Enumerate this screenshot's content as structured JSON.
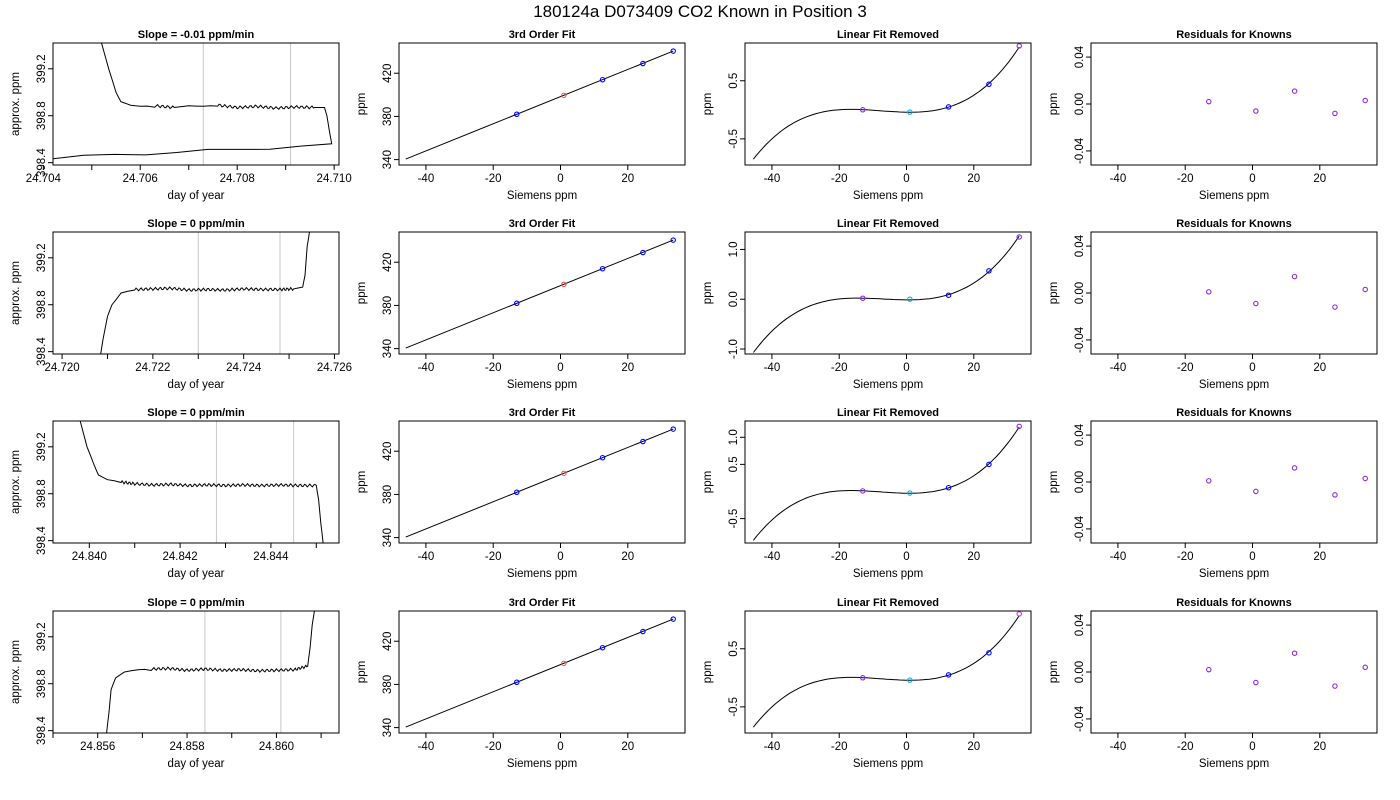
{
  "suptitle": "180124a     D073409   CO2 Known in Position  3",
  "colors": {
    "line": "#000000",
    "vline": "#c8c8c8",
    "pt_blue": "#0000ff",
    "pt_red": "#ff5555",
    "pt_cyan": "#00b5e5",
    "pt_purple": "#8a2be2",
    "pt_magenta": "#cc33cc"
  },
  "chart_data": [
    {
      "type": "line",
      "title": "Slope =  -0.01  ppm/min",
      "xlabel": "day of year",
      "ylabel": "approx. ppm",
      "xlim": [
        24.7042,
        24.7101
      ],
      "ylim": [
        398.38,
        399.42
      ],
      "xticks": [
        24.704,
        24.706,
        24.708,
        24.71
      ],
      "xtick_labels": [
        "24.704",
        "24.706",
        "24.708",
        "24.710"
      ],
      "xticks_minor": [
        24.705,
        24.707,
        24.709
      ],
      "yticks": [
        398.4,
        398.8,
        399.2
      ],
      "ytick_labels": [
        "398.4",
        "398.8",
        "399.2"
      ],
      "vlines": [
        24.7073,
        24.7091
      ],
      "x": [
        24.7052,
        24.70535,
        24.7055,
        24.7056,
        24.7058,
        24.706,
        24.7063,
        24.7067,
        24.707,
        24.7073,
        24.7076,
        24.708,
        24.7084,
        24.7088,
        24.7092,
        24.7096,
        24.7098,
        24.70985,
        24.70995,
        24.701
      ],
      "y": [
        399.42,
        399.2,
        399.0,
        398.92,
        398.89,
        398.88,
        398.885,
        398.87,
        398.885,
        398.88,
        398.89,
        398.87,
        398.88,
        398.865,
        398.875,
        398.87,
        398.87,
        398.8,
        398.55,
        398.38
      ],
      "band_wiggle": 0.012
    },
    {
      "type": "scatter",
      "title": "3rd Order Fit",
      "xlabel": "Siemens ppm",
      "ylabel": "ppm",
      "xlim": [
        -48,
        37
      ],
      "ylim": [
        335,
        448
      ],
      "xticks": [
        -40,
        -20,
        0,
        20
      ],
      "xtick_labels": [
        "-40",
        "-20",
        "0",
        "20"
      ],
      "yticks": [
        340,
        380,
        420
      ],
      "ytick_labels": [
        "340",
        "380",
        "420"
      ],
      "curve": {
        "kind": "linear",
        "x0": -46,
        "x1": 33.5,
        "y0": 340.5,
        "y1": 440.5
      },
      "points": [
        {
          "x": -13,
          "y": 382,
          "color": "pt_blue"
        },
        {
          "x": 1,
          "y": 399.5,
          "color": "pt_red"
        },
        {
          "x": 12.5,
          "y": 414,
          "color": "pt_blue"
        },
        {
          "x": 24.5,
          "y": 429,
          "color": "pt_blue"
        },
        {
          "x": 33.5,
          "y": 440.5,
          "color": "pt_blue"
        }
      ]
    },
    {
      "type": "scatter",
      "title": "Linear Fit Removed",
      "xlabel": "Siemens ppm",
      "ylabel": "ppm",
      "xlim": [
        -48,
        37
      ],
      "ylim": [
        -0.95,
        1.15
      ],
      "xticks": [
        -40,
        -20,
        0,
        20
      ],
      "xtick_labels": [
        "-40",
        "-20",
        "0",
        "20"
      ],
      "yticks": [
        -0.5,
        0.5
      ],
      "ytick_labels": [
        "-0.5",
        "0.5"
      ],
      "curve": {
        "kind": "cubic",
        "x0": -45.5,
        "x1": 33.5,
        "y_at_x0": -0.85,
        "y_peak": 0.0,
        "x_peak": -12,
        "y_trough": -0.04,
        "x_trough": 3,
        "y_at_x1": 1.08
      },
      "points": [
        {
          "x": -13,
          "y": 0.0,
          "color": "pt_purple"
        },
        {
          "x": 1,
          "y": -0.04,
          "color": "pt_cyan"
        },
        {
          "x": 12.5,
          "y": 0.05,
          "color": "pt_blue"
        },
        {
          "x": 24.5,
          "y": 0.44,
          "color": "pt_blue"
        },
        {
          "x": 33.5,
          "y": 1.1,
          "color": "pt_purple"
        }
      ]
    },
    {
      "type": "scatter",
      "title": "Residuals for Knowns",
      "xlabel": "Siemens ppm",
      "ylabel": "ppm",
      "xlim": [
        -48,
        37
      ],
      "ylim": [
        -0.052,
        0.052
      ],
      "xticks": [
        -40,
        -20,
        0,
        20
      ],
      "xtick_labels": [
        "-40",
        "-20",
        "0",
        "20"
      ],
      "yticks": [
        -0.04,
        0.0,
        0.04
      ],
      "ytick_labels": [
        "-0.04",
        "0.00",
        "0.04"
      ],
      "points": [
        {
          "x": -13,
          "y": 0.002,
          "color": "pt_purple"
        },
        {
          "x": 1,
          "y": -0.006,
          "color": "pt_purple"
        },
        {
          "x": 12.5,
          "y": 0.011,
          "color": "pt_purple"
        },
        {
          "x": 24.5,
          "y": -0.008,
          "color": "pt_purple"
        },
        {
          "x": 33.5,
          "y": 0.003,
          "color": "pt_purple"
        }
      ]
    },
    {
      "type": "line",
      "title": "Slope =  0  ppm/min",
      "xlabel": "day of year",
      "ylabel": "approx. ppm",
      "xlim": [
        24.7198,
        24.7261
      ],
      "ylim": [
        398.38,
        399.42
      ],
      "xticks": [
        24.72,
        24.722,
        24.724,
        24.726
      ],
      "xtick_labels": [
        "24.720",
        "24.722",
        "24.724",
        "24.726"
      ],
      "xticks_minor": [
        24.721,
        24.723,
        24.725
      ],
      "yticks": [
        398.4,
        398.8,
        399.2
      ],
      "ytick_labels": [
        "398.4",
        "398.8",
        "399.2"
      ],
      "vlines": [
        24.723,
        24.7248
      ],
      "x": [
        24.72085,
        24.7209,
        24.721,
        24.7211,
        24.7213,
        24.7216,
        24.722,
        24.7224,
        24.7228,
        24.7232,
        24.7236,
        24.724,
        24.7244,
        24.7248,
        24.7251,
        24.7253,
        24.72535,
        24.7254,
        24.72545
      ],
      "y": [
        398.38,
        398.5,
        398.7,
        398.8,
        398.9,
        398.93,
        398.935,
        398.94,
        398.925,
        398.93,
        398.925,
        398.935,
        398.93,
        398.93,
        398.935,
        398.95,
        399.05,
        399.3,
        399.42
      ],
      "band_wiggle": 0.012
    },
    {
      "type": "scatter",
      "title": "3rd Order Fit",
      "xlabel": "Siemens ppm",
      "ylabel": "ppm",
      "xlim": [
        -48,
        37
      ],
      "ylim": [
        335,
        448
      ],
      "xticks": [
        -40,
        -20,
        0,
        20
      ],
      "xtick_labels": [
        "-40",
        "-20",
        "0",
        "20"
      ],
      "yticks": [
        340,
        380,
        420
      ],
      "ytick_labels": [
        "340",
        "380",
        "420"
      ],
      "curve": {
        "kind": "linear",
        "x0": -46,
        "x1": 33.5,
        "y0": 340.5,
        "y1": 440.5
      },
      "points": [
        {
          "x": -13,
          "y": 382,
          "color": "pt_blue"
        },
        {
          "x": 1,
          "y": 399.5,
          "color": "pt_red"
        },
        {
          "x": 12.5,
          "y": 414,
          "color": "pt_blue"
        },
        {
          "x": 24.5,
          "y": 429,
          "color": "pt_blue"
        },
        {
          "x": 33.5,
          "y": 440.5,
          "color": "pt_blue"
        }
      ]
    },
    {
      "type": "scatter",
      "title": "Linear Fit Removed",
      "xlabel": "Siemens ppm",
      "ylabel": "ppm",
      "xlim": [
        -48,
        37
      ],
      "ylim": [
        -1.1,
        1.35
      ],
      "xticks": [
        -40,
        -20,
        0,
        20
      ],
      "xtick_labels": [
        "-40",
        "-20",
        "0",
        "20"
      ],
      "yticks": [
        -1.0,
        0.0,
        1.0
      ],
      "ytick_labels": [
        "-1.0",
        "0.0",
        "1.0"
      ],
      "curve": {
        "kind": "cubic",
        "x0": -45.5,
        "x1": 33.5,
        "y_at_x0": -1.07,
        "y_peak": 0.02,
        "x_peak": -12,
        "y_trough": -0.01,
        "x_trough": 3,
        "y_at_x1": 1.27
      },
      "points": [
        {
          "x": -13,
          "y": 0.02,
          "color": "pt_purple"
        },
        {
          "x": 1,
          "y": 0.0,
          "color": "pt_cyan"
        },
        {
          "x": 12.5,
          "y": 0.08,
          "color": "pt_blue"
        },
        {
          "x": 24.5,
          "y": 0.57,
          "color": "pt_blue"
        },
        {
          "x": 33.5,
          "y": 1.25,
          "color": "pt_purple"
        }
      ]
    },
    {
      "type": "scatter",
      "title": "Residuals for Knowns",
      "xlabel": "Siemens ppm",
      "ylabel": "ppm",
      "xlim": [
        -48,
        37
      ],
      "ylim": [
        -0.052,
        0.052
      ],
      "xticks": [
        -40,
        -20,
        0,
        20
      ],
      "xtick_labels": [
        "-40",
        "-20",
        "0",
        "20"
      ],
      "yticks": [
        -0.04,
        0.0,
        0.04
      ],
      "ytick_labels": [
        "-0.04",
        "0.00",
        "0.04"
      ],
      "points": [
        {
          "x": -13,
          "y": 0.001,
          "color": "pt_purple"
        },
        {
          "x": 1,
          "y": -0.009,
          "color": "pt_purple"
        },
        {
          "x": 12.5,
          "y": 0.014,
          "color": "pt_purple"
        },
        {
          "x": 24.5,
          "y": -0.012,
          "color": "pt_purple"
        },
        {
          "x": 33.5,
          "y": 0.003,
          "color": "pt_purple"
        }
      ]
    },
    {
      "type": "line",
      "title": "Slope =  0  ppm/min",
      "xlabel": "day of year",
      "ylabel": "approx. ppm",
      "xlim": [
        24.8392,
        24.8455
      ],
      "ylim": [
        398.38,
        399.42
      ],
      "xticks": [
        24.84,
        24.842,
        24.844
      ],
      "xtick_labels": [
        "24.840",
        "24.842",
        "24.844"
      ],
      "xticks_minor": [
        24.841,
        24.843,
        24.845
      ],
      "yticks": [
        398.4,
        398.8,
        399.2
      ],
      "ytick_labels": [
        "398.4",
        "398.8",
        "399.2"
      ],
      "vlines": [
        24.8428,
        24.8445
      ],
      "x": [
        24.8398,
        24.83995,
        24.8401,
        24.8402,
        24.8404,
        24.8407,
        24.841,
        24.8414,
        24.8418,
        24.8422,
        24.8426,
        24.843,
        24.8434,
        24.8438,
        24.8442,
        24.8446,
        24.845,
        24.84505,
        24.8451,
        24.84515
      ],
      "y": [
        399.42,
        399.2,
        399.05,
        398.96,
        398.92,
        398.9,
        398.885,
        398.875,
        398.88,
        398.87,
        398.875,
        398.87,
        398.875,
        398.87,
        398.875,
        398.87,
        398.87,
        398.75,
        398.55,
        398.38
      ],
      "band_wiggle": 0.012
    },
    {
      "type": "scatter",
      "title": "3rd Order Fit",
      "xlabel": "Siemens ppm",
      "ylabel": "ppm",
      "xlim": [
        -48,
        37
      ],
      "ylim": [
        335,
        448
      ],
      "xticks": [
        -40,
        -20,
        0,
        20
      ],
      "xtick_labels": [
        "-40",
        "-20",
        "0",
        "20"
      ],
      "yticks": [
        340,
        380,
        420
      ],
      "ytick_labels": [
        "340",
        "380",
        "420"
      ],
      "curve": {
        "kind": "linear",
        "x0": -46,
        "x1": 33.5,
        "y0": 340.5,
        "y1": 440.5
      },
      "points": [
        {
          "x": -13,
          "y": 382,
          "color": "pt_blue"
        },
        {
          "x": 1,
          "y": 399.5,
          "color": "pt_red"
        },
        {
          "x": 12.5,
          "y": 414,
          "color": "pt_blue"
        },
        {
          "x": 24.5,
          "y": 429,
          "color": "pt_blue"
        },
        {
          "x": 33.5,
          "y": 440.5,
          "color": "pt_blue"
        }
      ]
    },
    {
      "type": "scatter",
      "title": "Linear Fit Removed",
      "xlabel": "Siemens ppm",
      "ylabel": "ppm",
      "xlim": [
        -48,
        37
      ],
      "ylim": [
        -0.95,
        1.3
      ],
      "xticks": [
        -40,
        -20,
        0,
        20
      ],
      "xtick_labels": [
        "-40",
        "-20",
        "0",
        "20"
      ],
      "yticks": [
        -0.5,
        0.5,
        1.0
      ],
      "ytick_labels": [
        "-0.5",
        "0.5",
        "1.0"
      ],
      "curve": {
        "kind": "cubic",
        "x0": -45.5,
        "x1": 33.5,
        "y_at_x0": -0.9,
        "y_peak": 0.01,
        "x_peak": -12,
        "y_trough": -0.03,
        "x_trough": 3,
        "y_at_x1": 1.19
      },
      "points": [
        {
          "x": -13,
          "y": 0.01,
          "color": "pt_purple"
        },
        {
          "x": 1,
          "y": -0.03,
          "color": "pt_cyan"
        },
        {
          "x": 12.5,
          "y": 0.07,
          "color": "pt_blue"
        },
        {
          "x": 24.5,
          "y": 0.5,
          "color": "pt_blue"
        },
        {
          "x": 33.5,
          "y": 1.2,
          "color": "pt_purple"
        }
      ]
    },
    {
      "type": "scatter",
      "title": "Residuals for Knowns",
      "xlabel": "Siemens ppm",
      "ylabel": "ppm",
      "xlim": [
        -48,
        37
      ],
      "ylim": [
        -0.052,
        0.052
      ],
      "xticks": [
        -40,
        -20,
        0,
        20
      ],
      "xtick_labels": [
        "-40",
        "-20",
        "0",
        "20"
      ],
      "yticks": [
        -0.04,
        0.0,
        0.04
      ],
      "ytick_labels": [
        "-0.04",
        "0.00",
        "0.04"
      ],
      "points": [
        {
          "x": -13,
          "y": 0.001,
          "color": "pt_purple"
        },
        {
          "x": 1,
          "y": -0.008,
          "color": "pt_purple"
        },
        {
          "x": 12.5,
          "y": 0.012,
          "color": "pt_purple"
        },
        {
          "x": 24.5,
          "y": -0.011,
          "color": "pt_purple"
        },
        {
          "x": 33.5,
          "y": 0.003,
          "color": "pt_purple"
        }
      ]
    },
    {
      "type": "line",
      "title": "Slope =  0  ppm/min",
      "xlabel": "day of year",
      "ylabel": "approx. ppm",
      "xlim": [
        24.855,
        24.8614
      ],
      "ylim": [
        398.38,
        399.42
      ],
      "xticks": [
        24.856,
        24.858,
        24.86
      ],
      "xtick_labels": [
        "24.856",
        "24.858",
        "24.860"
      ],
      "xticks_minor": [
        24.855,
        24.857,
        24.859,
        24.861
      ],
      "yticks": [
        398.4,
        398.8,
        399.2
      ],
      "ytick_labels": [
        "398.4",
        "398.8",
        "399.2"
      ],
      "vlines": [
        24.8584,
        24.8601
      ],
      "x": [
        24.8562,
        24.85625,
        24.8563,
        24.8564,
        24.8566,
        24.8569,
        24.8572,
        24.8576,
        24.858,
        24.8584,
        24.8588,
        24.8592,
        24.8596,
        24.86,
        24.8604,
        24.8607,
        24.86075,
        24.8608,
        24.86085
      ],
      "y": [
        398.38,
        398.55,
        398.75,
        398.85,
        398.9,
        398.92,
        398.925,
        398.93,
        398.915,
        398.925,
        398.915,
        398.92,
        398.91,
        398.915,
        398.92,
        398.95,
        399.1,
        399.3,
        399.42
      ],
      "band_wiggle": 0.012
    },
    {
      "type": "scatter",
      "title": "3rd Order Fit",
      "xlabel": "Siemens ppm",
      "ylabel": "ppm",
      "xlim": [
        -48,
        37
      ],
      "ylim": [
        335,
        448
      ],
      "xticks": [
        -40,
        -20,
        0,
        20
      ],
      "xtick_labels": [
        "-40",
        "-20",
        "0",
        "20"
      ],
      "yticks": [
        340,
        380,
        420
      ],
      "ytick_labels": [
        "340",
        "380",
        "420"
      ],
      "curve": {
        "kind": "linear",
        "x0": -46,
        "x1": 33.5,
        "y0": 340.5,
        "y1": 440.5
      },
      "points": [
        {
          "x": -13,
          "y": 382,
          "color": "pt_blue"
        },
        {
          "x": 1,
          "y": 399.5,
          "color": "pt_red"
        },
        {
          "x": 12.5,
          "y": 414,
          "color": "pt_blue"
        },
        {
          "x": 24.5,
          "y": 429,
          "color": "pt_blue"
        },
        {
          "x": 33.5,
          "y": 440.5,
          "color": "pt_blue"
        }
      ]
    },
    {
      "type": "scatter",
      "title": "Linear Fit Removed",
      "xlabel": "Siemens ppm",
      "ylabel": "ppm",
      "xlim": [
        -48,
        37
      ],
      "ylim": [
        -0.95,
        1.15
      ],
      "xticks": [
        -40,
        -20,
        0,
        20
      ],
      "xtick_labels": [
        "-40",
        "-20",
        "0",
        "20"
      ],
      "yticks": [
        -0.5,
        0.5
      ],
      "ytick_labels": [
        "-0.5",
        "0.5"
      ],
      "curve": {
        "kind": "cubic",
        "x0": -45.5,
        "x1": 33.5,
        "y_at_x0": -0.85,
        "y_peak": 0.0,
        "x_peak": -12,
        "y_trough": -0.04,
        "x_trough": 3,
        "y_at_x1": 1.07
      },
      "points": [
        {
          "x": -13,
          "y": 0.0,
          "color": "pt_purple"
        },
        {
          "x": 1,
          "y": -0.04,
          "color": "pt_cyan"
        },
        {
          "x": 12.5,
          "y": 0.05,
          "color": "pt_blue"
        },
        {
          "x": 24.5,
          "y": 0.43,
          "color": "pt_blue"
        },
        {
          "x": 33.5,
          "y": 1.1,
          "color": "pt_magenta"
        }
      ]
    },
    {
      "type": "scatter",
      "title": "Residuals for Knowns",
      "xlabel": "Siemens ppm",
      "ylabel": "ppm",
      "xlim": [
        -48,
        37
      ],
      "ylim": [
        -0.052,
        0.052
      ],
      "xticks": [
        -40,
        -20,
        0,
        20
      ],
      "xtick_labels": [
        "-40",
        "-20",
        "0",
        "20"
      ],
      "yticks": [
        -0.04,
        0.0,
        0.04
      ],
      "ytick_labels": [
        "-0.04",
        "0.00",
        "0.04"
      ],
      "points": [
        {
          "x": -13,
          "y": 0.002,
          "color": "pt_purple"
        },
        {
          "x": 1,
          "y": -0.009,
          "color": "pt_purple"
        },
        {
          "x": 12.5,
          "y": 0.016,
          "color": "pt_purple"
        },
        {
          "x": 24.5,
          "y": -0.012,
          "color": "pt_purple"
        },
        {
          "x": 33.5,
          "y": 0.004,
          "color": "pt_purple"
        }
      ]
    }
  ]
}
